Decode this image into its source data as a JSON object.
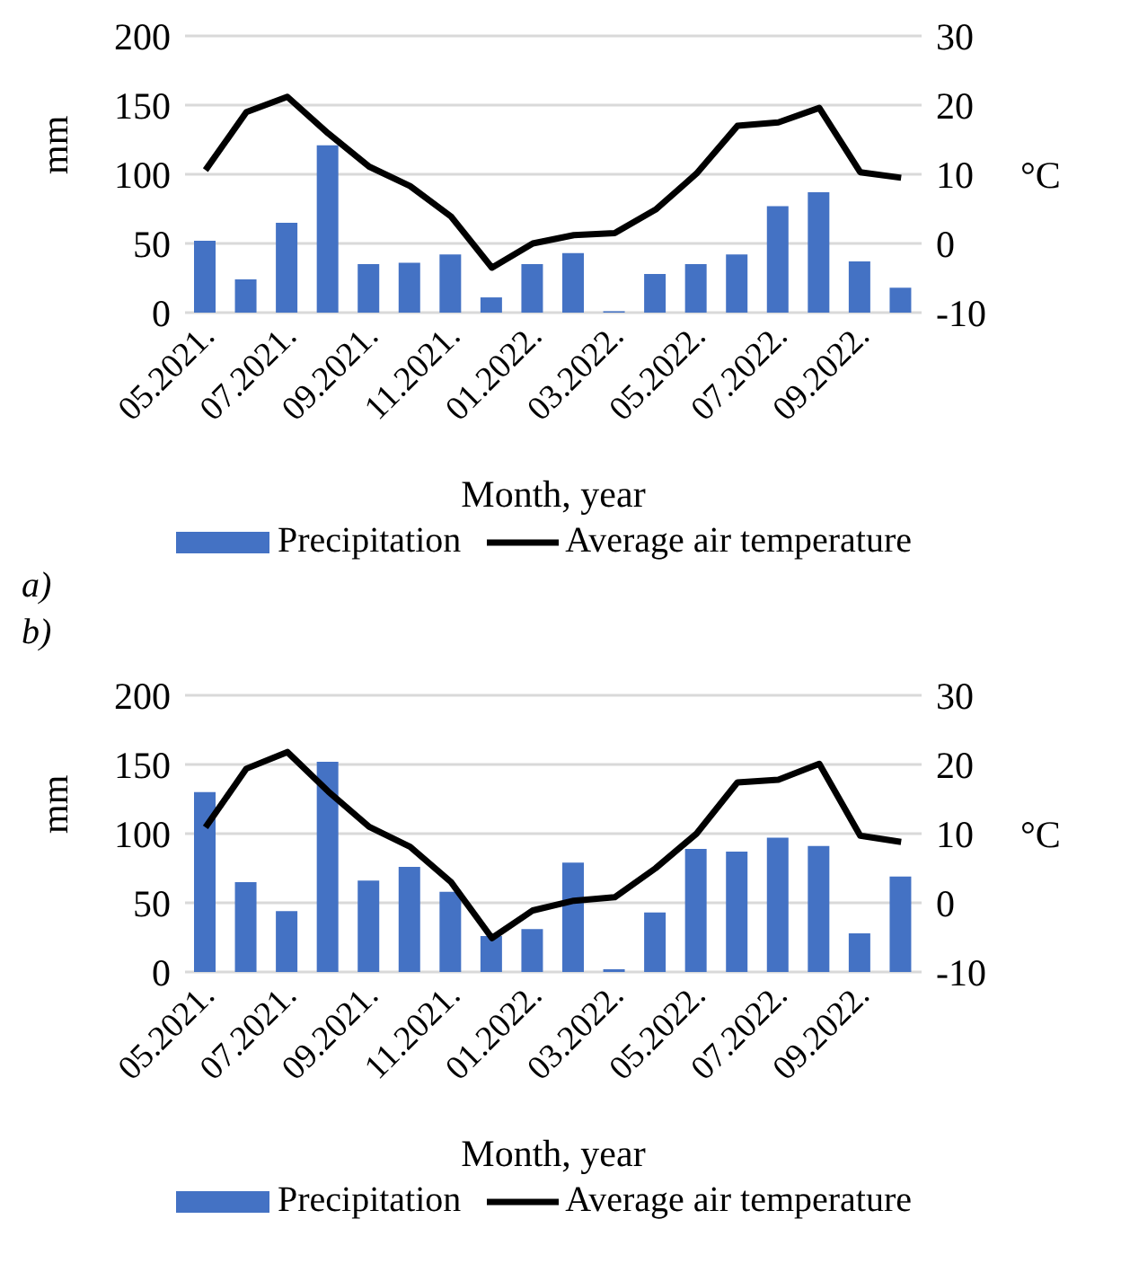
{
  "chart_data": [
    {
      "type": "bar",
      "categories": [
        "05.2021.",
        null,
        "07.2021.",
        null,
        "09.2021.",
        null,
        "11.2021.",
        null,
        "01.2022.",
        null,
        "03.2022.",
        null,
        "05.2022.",
        null,
        "07.2022.",
        null,
        "09.2022.",
        null
      ],
      "xlabel": "Month, year",
      "ylabel": "mm",
      "y2label": "°C",
      "ylim": [
        0,
        200
      ],
      "yticks": [
        0,
        50,
        100,
        150,
        200
      ],
      "y2lim": [
        -10,
        30
      ],
      "y2ticks": [
        -10,
        0,
        10,
        20,
        30
      ],
      "grid": "y",
      "legend": "bottom",
      "annotations": [
        "a)"
      ],
      "series": [
        {
          "name": "Precipitation",
          "color": "#4472c4",
          "values": [
            52,
            24,
            65,
            121,
            35,
            36,
            42,
            11,
            35,
            43,
            1,
            28,
            35,
            42,
            77,
            87,
            37,
            18
          ]
        },
        {
          "name": "Average air temperature",
          "type": "line",
          "axis": "y2",
          "color": "#000000",
          "values": [
            10.6,
            19,
            21.2,
            15.9,
            11.1,
            8.3,
            3.9,
            -3.5,
            0,
            1.2,
            1.5,
            4.9,
            10.1,
            17,
            17.5,
            19.6,
            10.3,
            9.5
          ]
        }
      ]
    },
    {
      "type": "bar",
      "categories": [
        "05.2021.",
        null,
        "07.2021.",
        null,
        "09.2021.",
        null,
        "11.2021.",
        null,
        "01.2022.",
        null,
        "03.2022.",
        null,
        "05.2022.",
        null,
        "07.2022.",
        null,
        "09.2022.",
        null
      ],
      "xlabel": "Month, year",
      "ylabel": "mm",
      "y2label": "°C",
      "ylim": [
        0,
        200
      ],
      "yticks": [
        0,
        50,
        100,
        150,
        200
      ],
      "y2lim": [
        -10,
        30
      ],
      "y2ticks": [
        -10,
        0,
        10,
        20,
        30
      ],
      "grid": "y",
      "legend": "bottom",
      "annotations": [
        "b)"
      ],
      "series": [
        {
          "name": "Precipitation",
          "color": "#4472c4",
          "values": [
            130,
            65,
            44,
            152,
            66,
            76,
            58,
            26,
            31,
            79,
            2,
            43,
            89,
            87,
            97,
            91,
            28,
            69
          ]
        },
        {
          "name": "Average air temperature",
          "type": "line",
          "axis": "y2",
          "color": "#000000",
          "values": [
            10.9,
            19.4,
            21.8,
            16.1,
            11,
            8.1,
            3,
            -5.1,
            -1.1,
            0.3,
            0.8,
            5,
            10,
            17.4,
            17.8,
            20.1,
            9.7,
            8.8
          ]
        }
      ]
    }
  ]
}
